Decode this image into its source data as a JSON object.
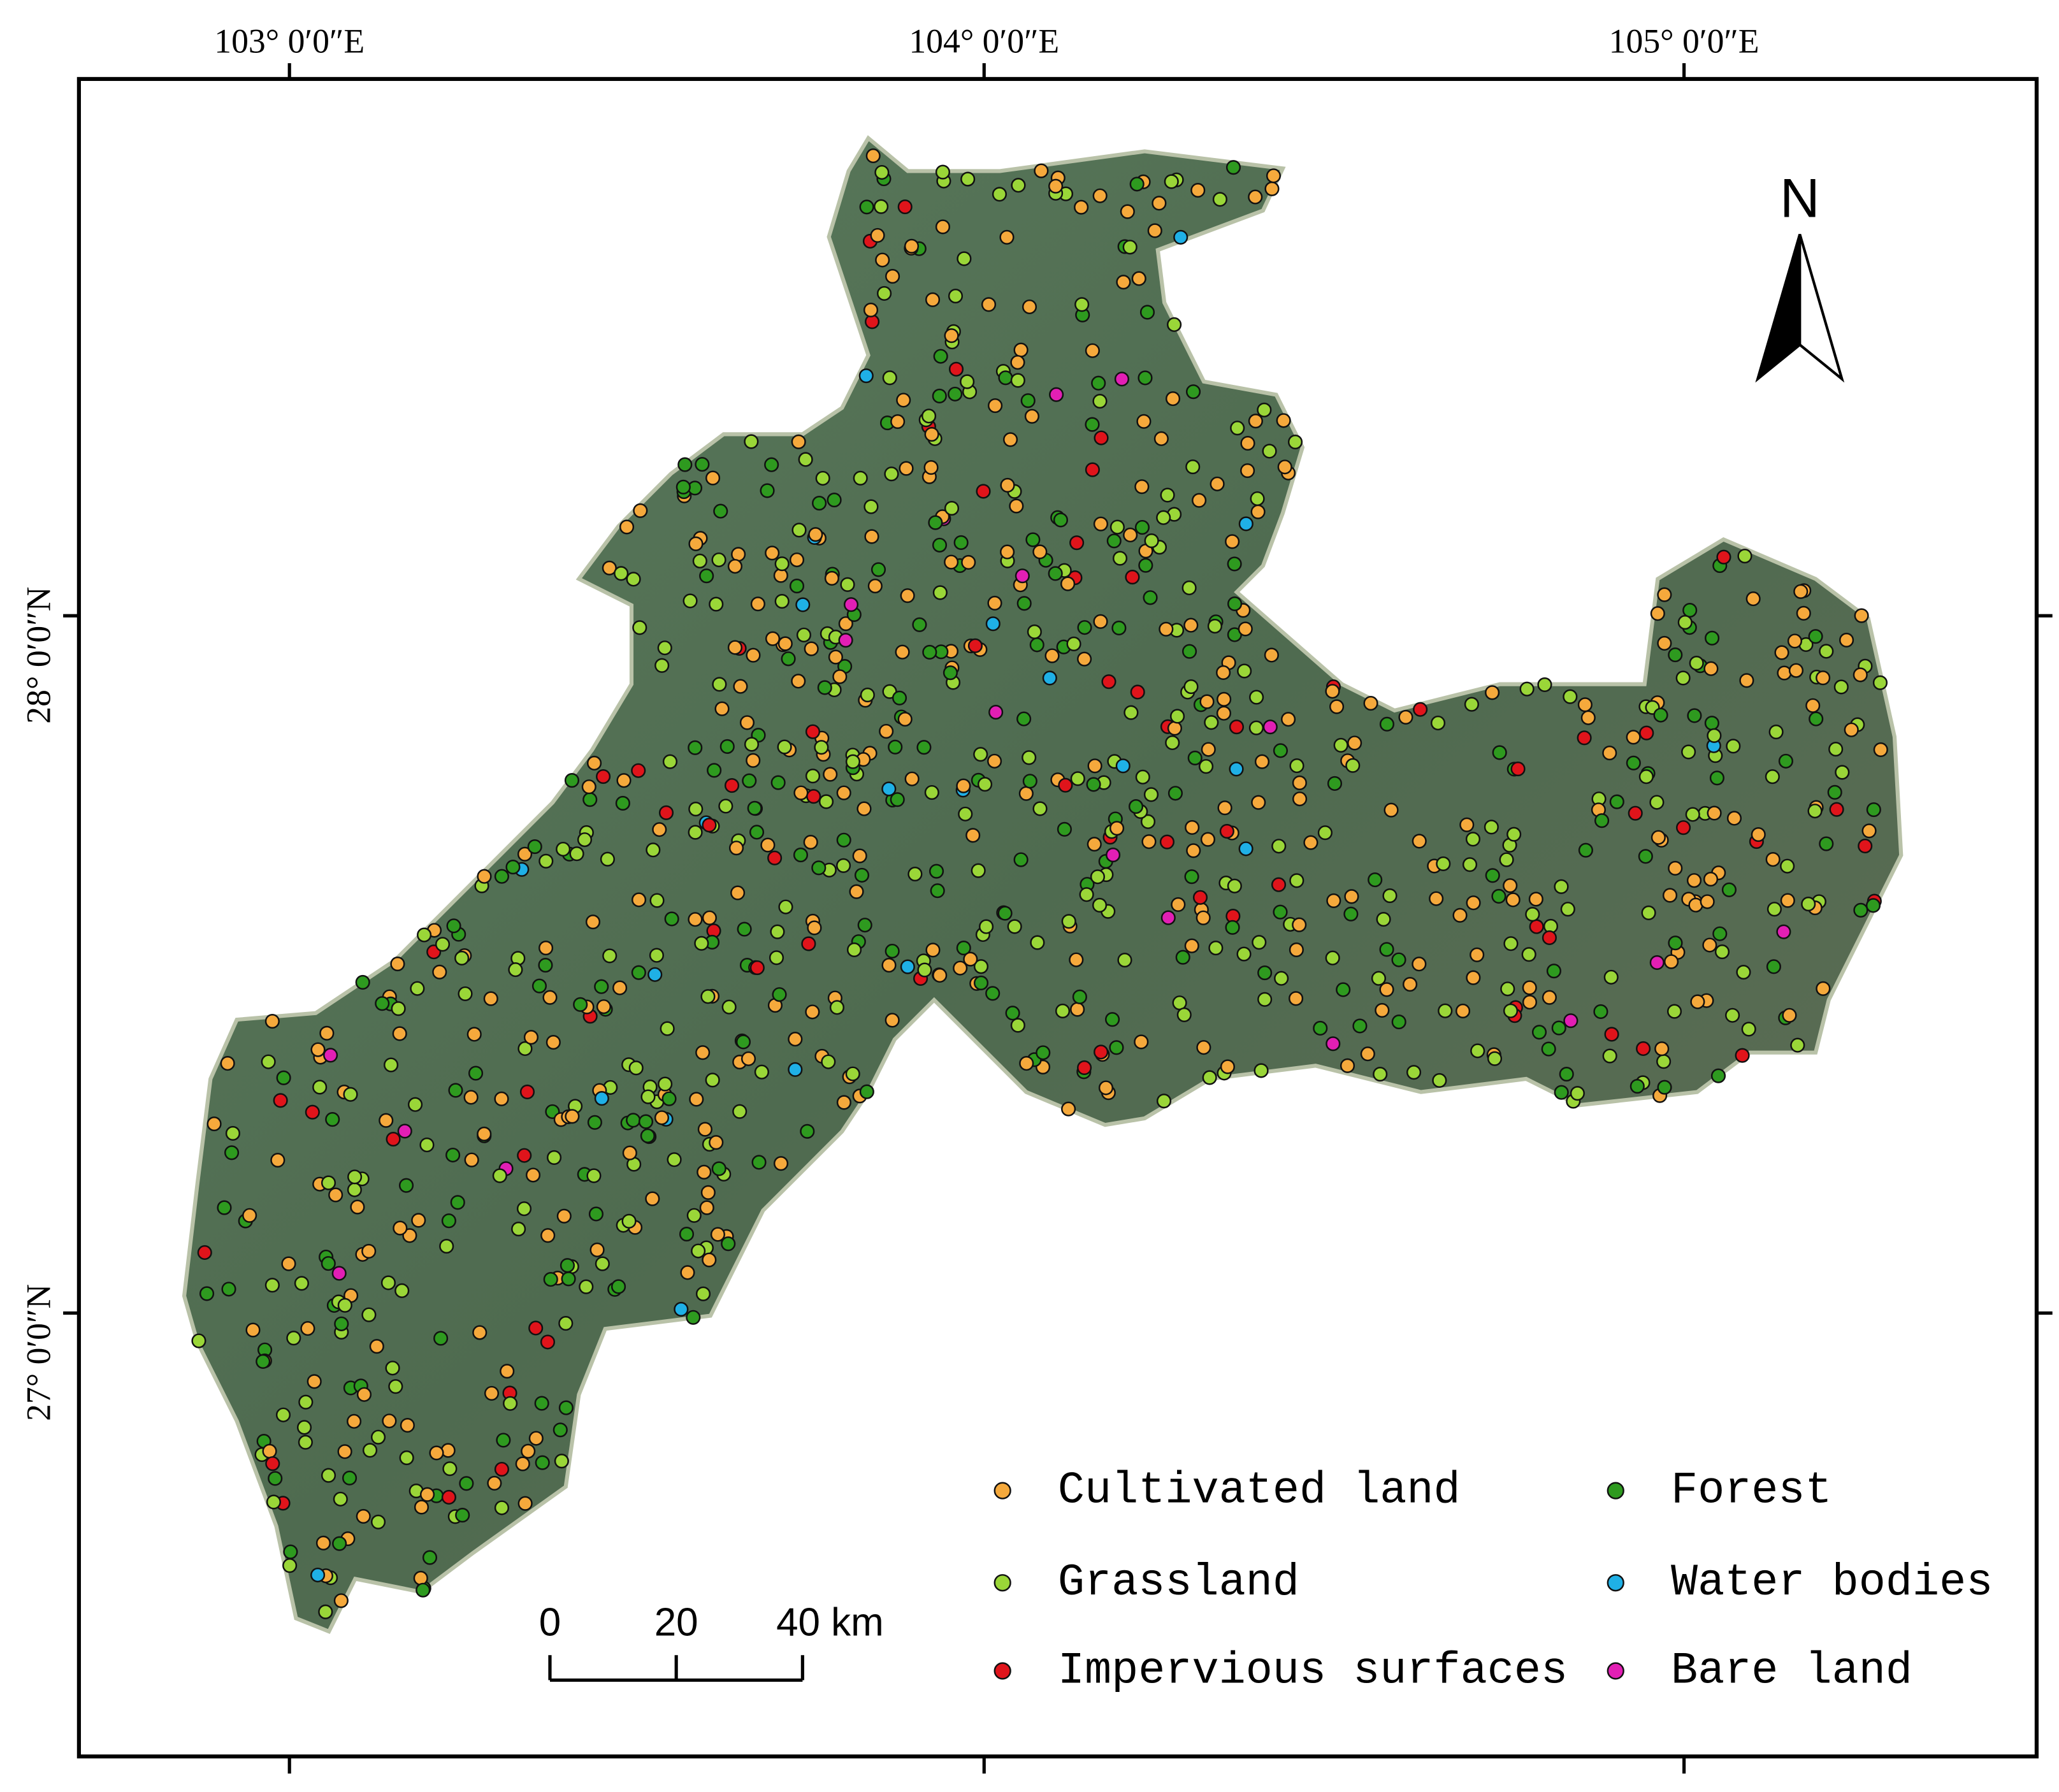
{
  "map": {
    "x_labels": [
      "103° 0′0″E",
      "104° 0′0″E",
      "105° 0′0″E"
    ],
    "y_labels": [
      "28° 0′0″N",
      "27° 0′0″N"
    ],
    "north": "N",
    "scale_bar": [
      "0",
      "20",
      "40 km"
    ],
    "legend": [
      {
        "name": "Cultivated land",
        "color": "#f5a93c"
      },
      {
        "name": "Grassland",
        "color": "#9ad638"
      },
      {
        "name": "Impervious surfaces",
        "color": "#e0141b"
      },
      {
        "name": "Forest",
        "color": "#2e9a1f"
      },
      {
        "name": "Water bodies",
        "color": "#1fb0e6"
      },
      {
        "name": "Bare land",
        "color": "#e21fb4"
      }
    ]
  }
}
